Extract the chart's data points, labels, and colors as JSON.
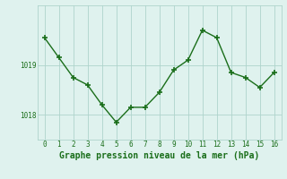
{
  "x": [
    0,
    1,
    2,
    3,
    4,
    5,
    6,
    7,
    8,
    9,
    10,
    11,
    12,
    13,
    14,
    15,
    16
  ],
  "y": [
    1019.55,
    1019.15,
    1018.75,
    1018.6,
    1018.2,
    1017.85,
    1018.15,
    1018.15,
    1018.45,
    1018.9,
    1019.1,
    1019.7,
    1019.55,
    1018.85,
    1018.75,
    1018.55,
    1018.85
  ],
  "line_color": "#1a6e1a",
  "marker_color": "#1a6e1a",
  "bg_color": "#dff2ee",
  "grid_color": "#aed4cc",
  "xlabel": "Graphe pression niveau de la mer (hPa)",
  "tick_color": "#1a6e1a",
  "ytick_labels": [
    "1018",
    "1019"
  ],
  "ytick_values": [
    1018.0,
    1019.0
  ],
  "xlim": [
    -0.5,
    16.5
  ],
  "ylim": [
    1017.5,
    1020.2
  ],
  "figsize": [
    3.2,
    2.0
  ],
  "dpi": 100
}
